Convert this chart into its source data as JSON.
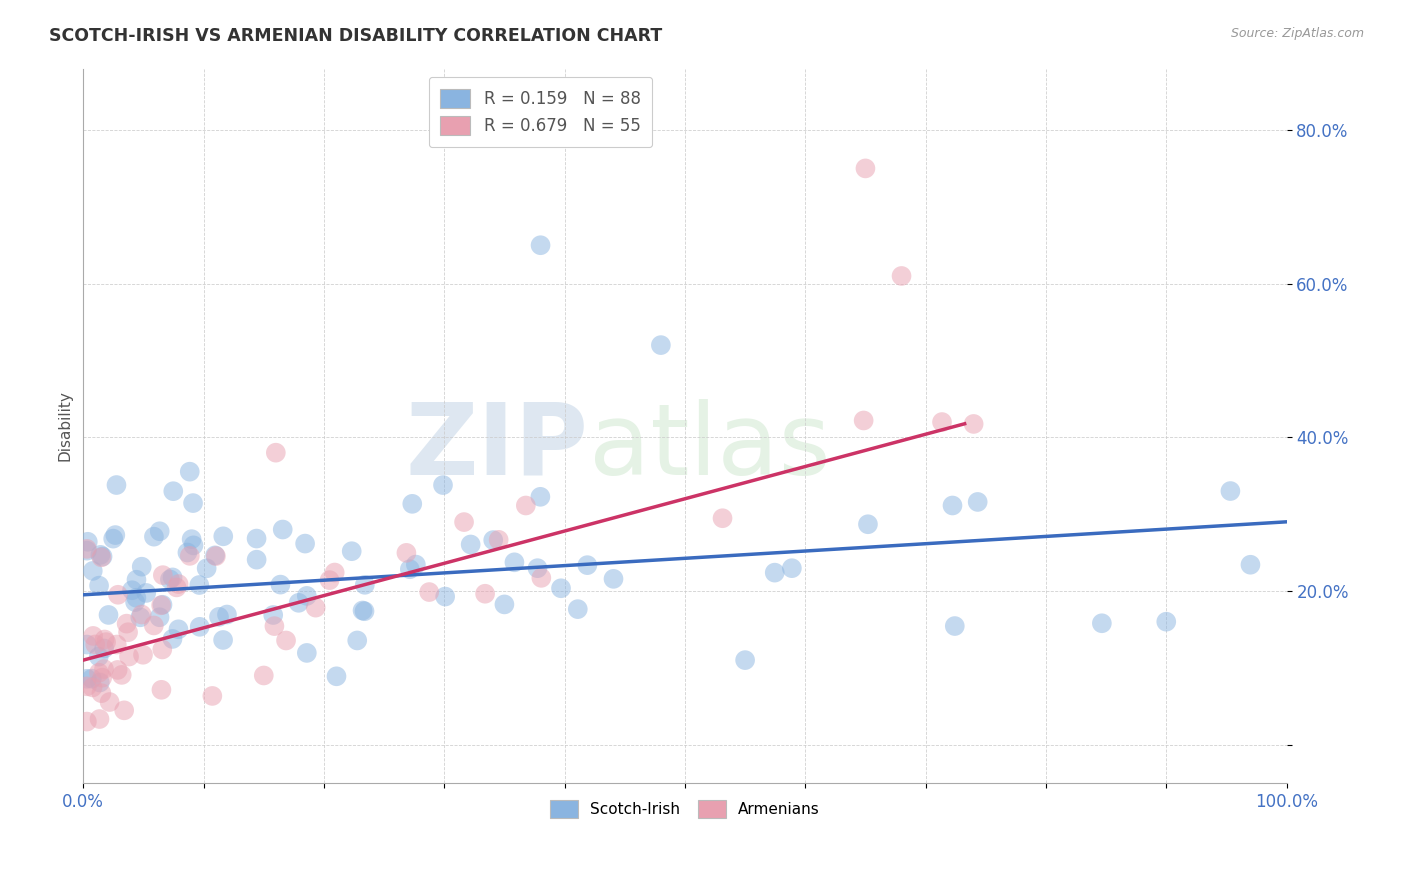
{
  "title": "SCOTCH-IRISH VS ARMENIAN DISABILITY CORRELATION CHART",
  "source": "Source: ZipAtlas.com",
  "ylabel": "Disability",
  "legend_blue_r": "R = 0.159",
  "legend_blue_n": "N = 88",
  "legend_pink_r": "R = 0.679",
  "legend_pink_n": "N = 55",
  "blue_color": "#8ab4e0",
  "pink_color": "#e8a0b0",
  "blue_line_color": "#3a6bbf",
  "pink_line_color": "#cc3366",
  "blue_line_intercept": 19.5,
  "blue_line_slope": 0.095,
  "pink_line_intercept": 11.0,
  "pink_line_slope": 0.42,
  "xlim": [
    0,
    100
  ],
  "ylim": [
    -5,
    88
  ],
  "ytick_vals": [
    0,
    20,
    40,
    60,
    80
  ],
  "ytick_labels": [
    "",
    "20.0%",
    "40.0%",
    "60.0%",
    "80.0%"
  ],
  "watermark_zip": "ZIP",
  "watermark_atlas": "atlas",
  "background_color": "#ffffff",
  "grid_color": "#cccccc",
  "scatter_size": 200,
  "scatter_alpha": 0.5
}
